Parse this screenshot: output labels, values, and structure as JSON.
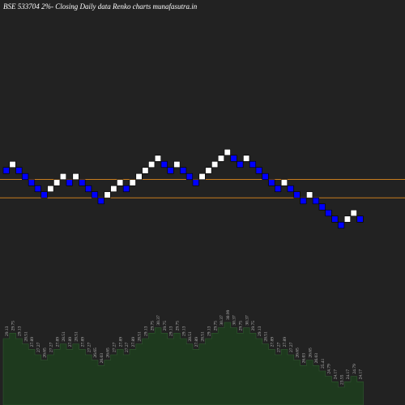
{
  "chart_data": {
    "type": "renko",
    "title": "BSE 533704  2%-  Closing Daily data  Renko  charts munafasutra.in",
    "values": [
      29.13,
      29.75,
      29.13,
      28.51,
      27.89,
      27.27,
      26.65,
      27.27,
      27.89,
      28.51,
      27.89,
      28.51,
      27.89,
      27.27,
      26.65,
      26.03,
      26.65,
      27.27,
      27.89,
      27.27,
      27.89,
      28.51,
      29.13,
      29.75,
      30.37,
      29.75,
      29.13,
      29.75,
      29.13,
      28.51,
      27.89,
      28.51,
      29.13,
      29.75,
      30.37,
      30.99,
      30.37,
      29.75,
      30.37,
      29.75,
      29.13,
      28.51,
      27.89,
      27.27,
      27.89,
      27.27,
      26.65,
      26.03,
      26.65,
      26.03,
      25.41,
      24.79,
      24.17,
      23.55,
      24.17,
      24.79,
      24.17
    ],
    "up_color": "#ffffff",
    "down_color": "#0000ff",
    "area_color": "#1e3a1e",
    "reference_lines": [
      28.22,
      26.34
    ],
    "reference_color": "#c87d1e"
  }
}
